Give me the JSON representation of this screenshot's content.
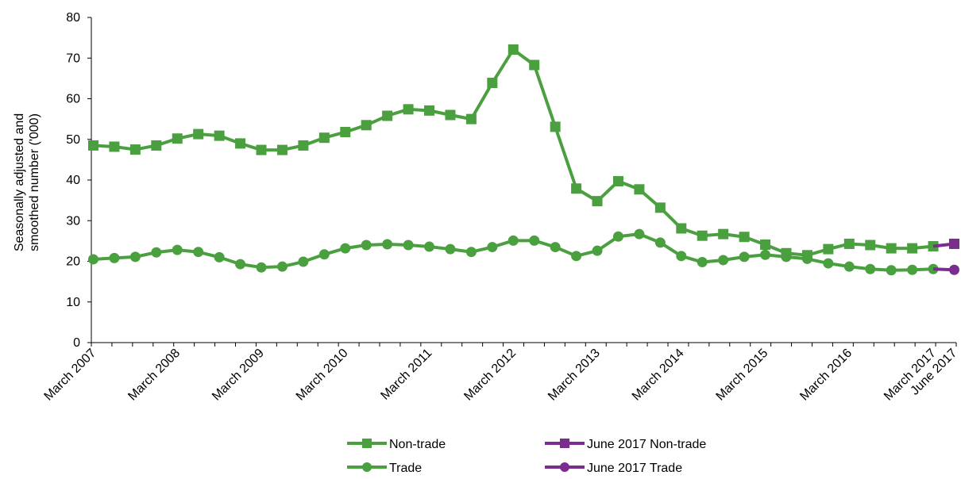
{
  "chart_data": {
    "type": "line",
    "ylabel_lines": [
      "Seasonally adjusted and",
      "smoothed number ('000)"
    ],
    "ylim": [
      0,
      80
    ],
    "yticks": [
      0,
      10,
      20,
      30,
      40,
      50,
      60,
      70,
      80
    ],
    "xtick_labels": [
      {
        "index": 0,
        "label": "March 2007"
      },
      {
        "index": 4,
        "label": "March 2008"
      },
      {
        "index": 8,
        "label": "March 2009"
      },
      {
        "index": 12,
        "label": "March 2010"
      },
      {
        "index": 16,
        "label": "March 2011"
      },
      {
        "index": 20,
        "label": "March 2012"
      },
      {
        "index": 24,
        "label": "March 2013"
      },
      {
        "index": 28,
        "label": "March 2014"
      },
      {
        "index": 32,
        "label": "March 2015"
      },
      {
        "index": 36,
        "label": "March 2016"
      },
      {
        "index": 40,
        "label": "March 2017"
      },
      {
        "index": 41,
        "label": "June 2017"
      }
    ],
    "period_count": 42,
    "series": [
      {
        "name": "Non-trade",
        "color": "#4aa03f",
        "marker": "square",
        "start_index": 0,
        "values": [
          48.5,
          48.2,
          47.5,
          48.5,
          50.2,
          51.3,
          50.9,
          49.0,
          47.4,
          47.4,
          48.5,
          50.4,
          51.8,
          53.5,
          55.8,
          57.4,
          57.1,
          56.0,
          55.0,
          63.9,
          72.1,
          68.3,
          53.1,
          37.9,
          34.8,
          39.7,
          37.7,
          33.2,
          28.1,
          26.3,
          26.7,
          26.0,
          24.1,
          22.0,
          21.5,
          23.0,
          24.3,
          24.0,
          23.2,
          23.2,
          23.7
        ]
      },
      {
        "name": "Trade",
        "color": "#4aa03f",
        "marker": "circle",
        "start_index": 0,
        "values": [
          20.5,
          20.8,
          21.1,
          22.2,
          22.8,
          22.3,
          21.0,
          19.3,
          18.5,
          18.7,
          19.9,
          21.7,
          23.2,
          24.0,
          24.2,
          24.0,
          23.6,
          23.0,
          22.3,
          23.5,
          25.1,
          25.1,
          23.5,
          21.3,
          22.6,
          26.1,
          26.7,
          24.6,
          21.3,
          19.8,
          20.3,
          21.1,
          21.6,
          21.1,
          20.6,
          19.5,
          18.7,
          18.1,
          17.8,
          17.9,
          18.1
        ]
      },
      {
        "name": "June 2017 Non-trade",
        "color": "#7b2c8f",
        "marker": "square",
        "start_index": 40,
        "values": [
          23.7,
          24.3
        ]
      },
      {
        "name": "June 2017 Trade",
        "color": "#7b2c8f",
        "marker": "circle",
        "start_index": 40,
        "values": [
          18.1,
          17.9
        ]
      }
    ],
    "legend_placement": "bottom",
    "grid": false
  }
}
